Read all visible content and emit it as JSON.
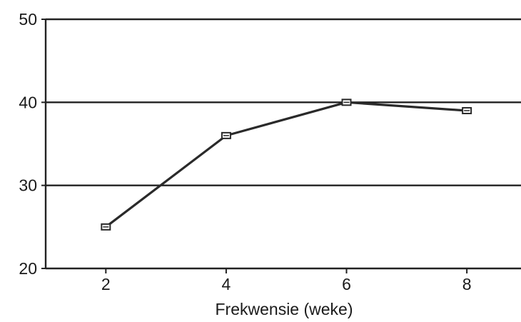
{
  "chart_data": {
    "type": "line",
    "title": "",
    "xlabel": "Frekwensie (weke)",
    "ylabel": "",
    "x": [
      2,
      4,
      6,
      8
    ],
    "x_ticks": [
      "2",
      "4",
      "6",
      "8"
    ],
    "y_ticks": [
      "20",
      "30",
      "40",
      "50"
    ],
    "xlim": [
      1,
      8.9
    ],
    "ylim": [
      20,
      50
    ],
    "grid": "horizontal",
    "legend": "none",
    "series": [
      {
        "values": [
          25,
          36,
          40,
          39
        ],
        "color": "#2a2a2a",
        "marker": "square"
      }
    ]
  }
}
